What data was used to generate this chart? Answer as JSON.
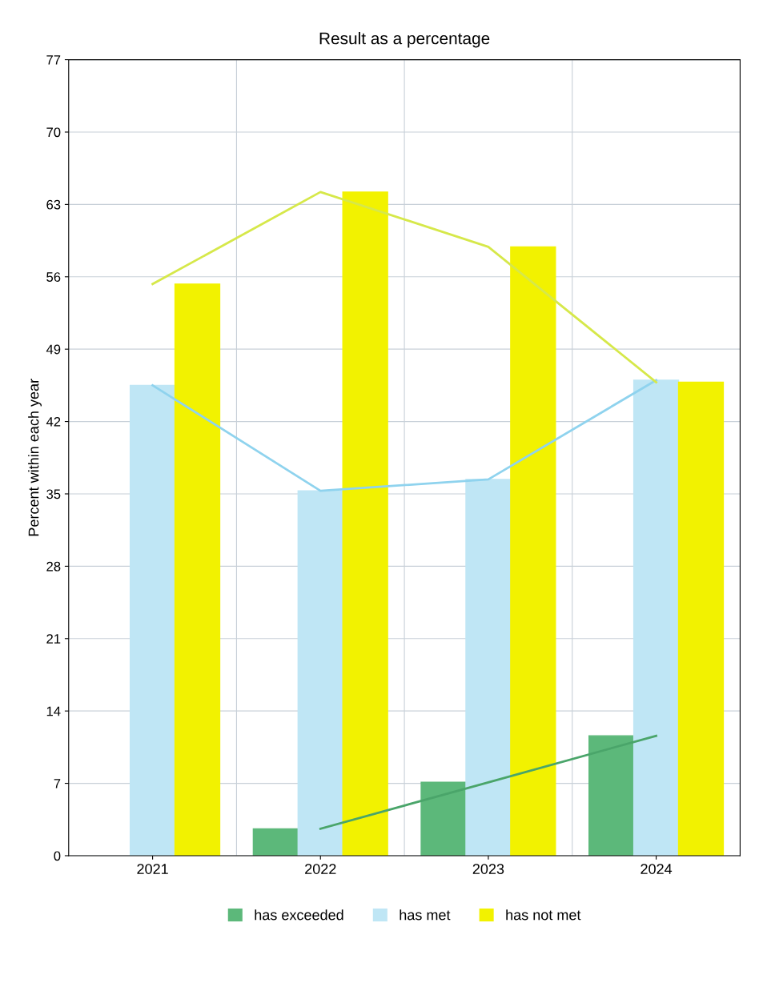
{
  "chart_data": {
    "type": "bar",
    "title": "Result as a percentage",
    "ylabel": "Percent within each year",
    "categories": [
      "2021",
      "2022",
      "2023",
      "2024"
    ],
    "series": [
      {
        "name": "has exceeded",
        "color": "#5cb87a",
        "values": [
          null,
          2.6,
          7.1,
          11.6
        ]
      },
      {
        "name": "has met",
        "color": "#bfe6f5",
        "values": [
          45.5,
          35.3,
          36.4,
          46.0
        ]
      },
      {
        "name": "has not met",
        "color": "#f2f200",
        "values": [
          55.3,
          64.2,
          58.9,
          45.8
        ]
      },
      {
        "type": "line",
        "color": "#4aa56a",
        "values": [
          null,
          2.6,
          7.1,
          11.6
        ]
      },
      {
        "type": "line",
        "color": "#8fd3ee",
        "values": [
          45.5,
          35.3,
          36.4,
          46.0
        ]
      },
      {
        "type": "line",
        "color": "#d6e84a",
        "values": [
          55.3,
          64.2,
          58.9,
          45.8
        ]
      }
    ],
    "ylim": [
      0,
      77
    ],
    "yticks": [
      0,
      7,
      14,
      21,
      28,
      35,
      42,
      49,
      56,
      63,
      70,
      77
    ],
    "grid": true,
    "legend": "bottom"
  }
}
